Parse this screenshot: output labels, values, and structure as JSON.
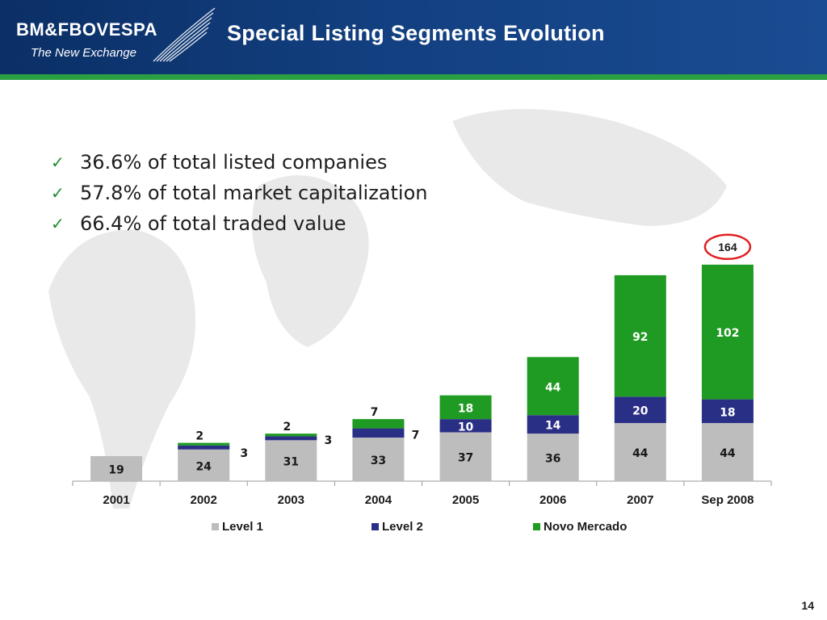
{
  "header": {
    "logo_text": "BM&FBOVESPA",
    "logo_tagline": "The New Exchange",
    "title": "Special Listing Segments Evolution"
  },
  "bullets": [
    "36.6% of total listed companies",
    "57.8% of total market capitalization",
    "66.4% of total traded value"
  ],
  "page_number": "14",
  "colors": {
    "header_blue": "#123f7f",
    "stripe_green": "#2aa043",
    "level1": "#bdbdbd",
    "level2": "#2a2f86",
    "novo_mercado": "#1f9a22",
    "highlight_circle": "#e02020"
  },
  "chart_data": {
    "type": "bar",
    "stacked": true,
    "categories": [
      "2001",
      "2002",
      "2003",
      "2004",
      "2005",
      "2006",
      "2007",
      "Sep 2008"
    ],
    "series": [
      {
        "name": "Level 1",
        "values": [
          19,
          24,
          31,
          33,
          37,
          36,
          44,
          44
        ]
      },
      {
        "name": "Level 2",
        "values": [
          0,
          3,
          3,
          7,
          10,
          14,
          20,
          18
        ]
      },
      {
        "name": "Novo Mercado",
        "values": [
          0,
          2,
          2,
          7,
          18,
          44,
          92,
          102
        ]
      }
    ],
    "totals_highlight": {
      "category": "Sep 2008",
      "value": "164"
    },
    "legend_position": "bottom",
    "ylim": [
      0,
      170
    ],
    "grid": false
  }
}
